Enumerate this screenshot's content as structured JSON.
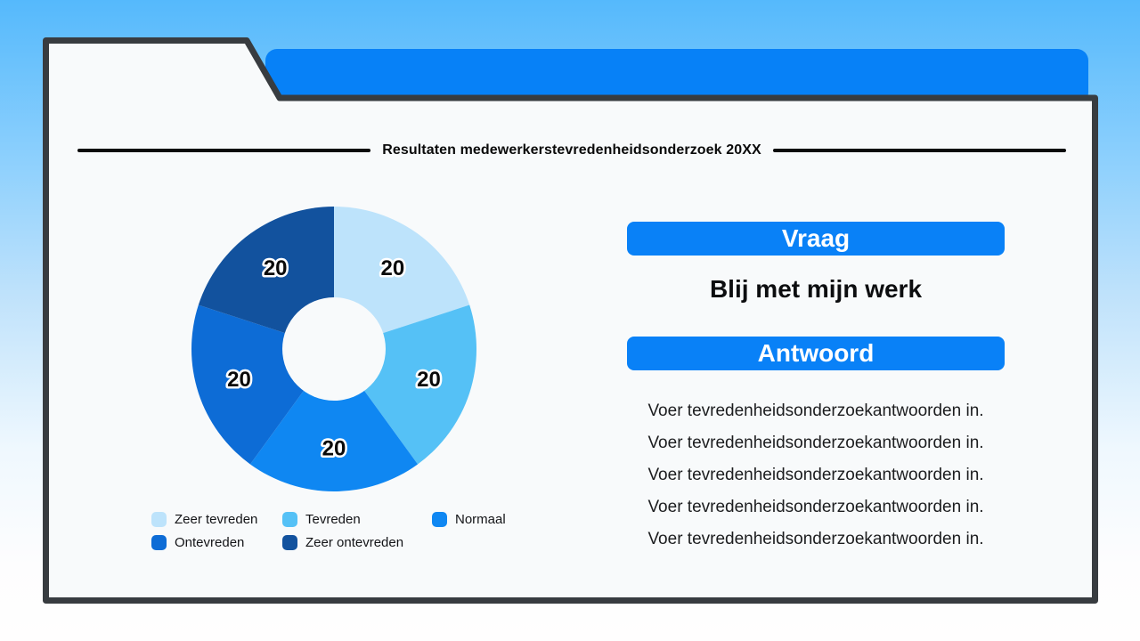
{
  "title": "Resultaten medewerkerstevredenheidsonderzoek 20XX",
  "chart_data": {
    "type": "pie",
    "donut": true,
    "categories": [
      "Zeer tevreden",
      "Tevreden",
      "Normaal",
      "Ontevreden",
      "Zeer ontevreden"
    ],
    "values": [
      20,
      20,
      20,
      20,
      20
    ],
    "data_labels": [
      "20",
      "20",
      "20",
      "20",
      "20"
    ],
    "colors": [
      "#BDE3FB",
      "#55C1F6",
      "#0F87F2",
      "#0D6CD6",
      "#12529E"
    ],
    "start_angle_deg": 0,
    "direction": "clockwise",
    "outer_radius": 160,
    "inner_radius": 58,
    "legend_position": "bottom"
  },
  "qa": {
    "question_header": "Vraag",
    "question": "Blij met mijn werk",
    "answer_header": "Antwoord",
    "answers": [
      "Voer tevredenheidsonderzoekantwoorden in.",
      "Voer tevredenheidsonderzoekantwoorden in.",
      "Voer tevredenheidsonderzoekantwoorden in.",
      "Voer tevredenheidsonderzoekantwoorden in.",
      "Voer tevredenheidsonderzoekantwoorden in."
    ]
  },
  "colors": {
    "accent_blue": "#0981F7",
    "top_bar_blue": "#0781F7",
    "card_background": "#F8FAFB",
    "card_border": "#383C40",
    "background_gradient_top": "#55B9FC",
    "background_gradient_bottom": "#FFFEFE",
    "title_line": "#0A0A0A"
  }
}
